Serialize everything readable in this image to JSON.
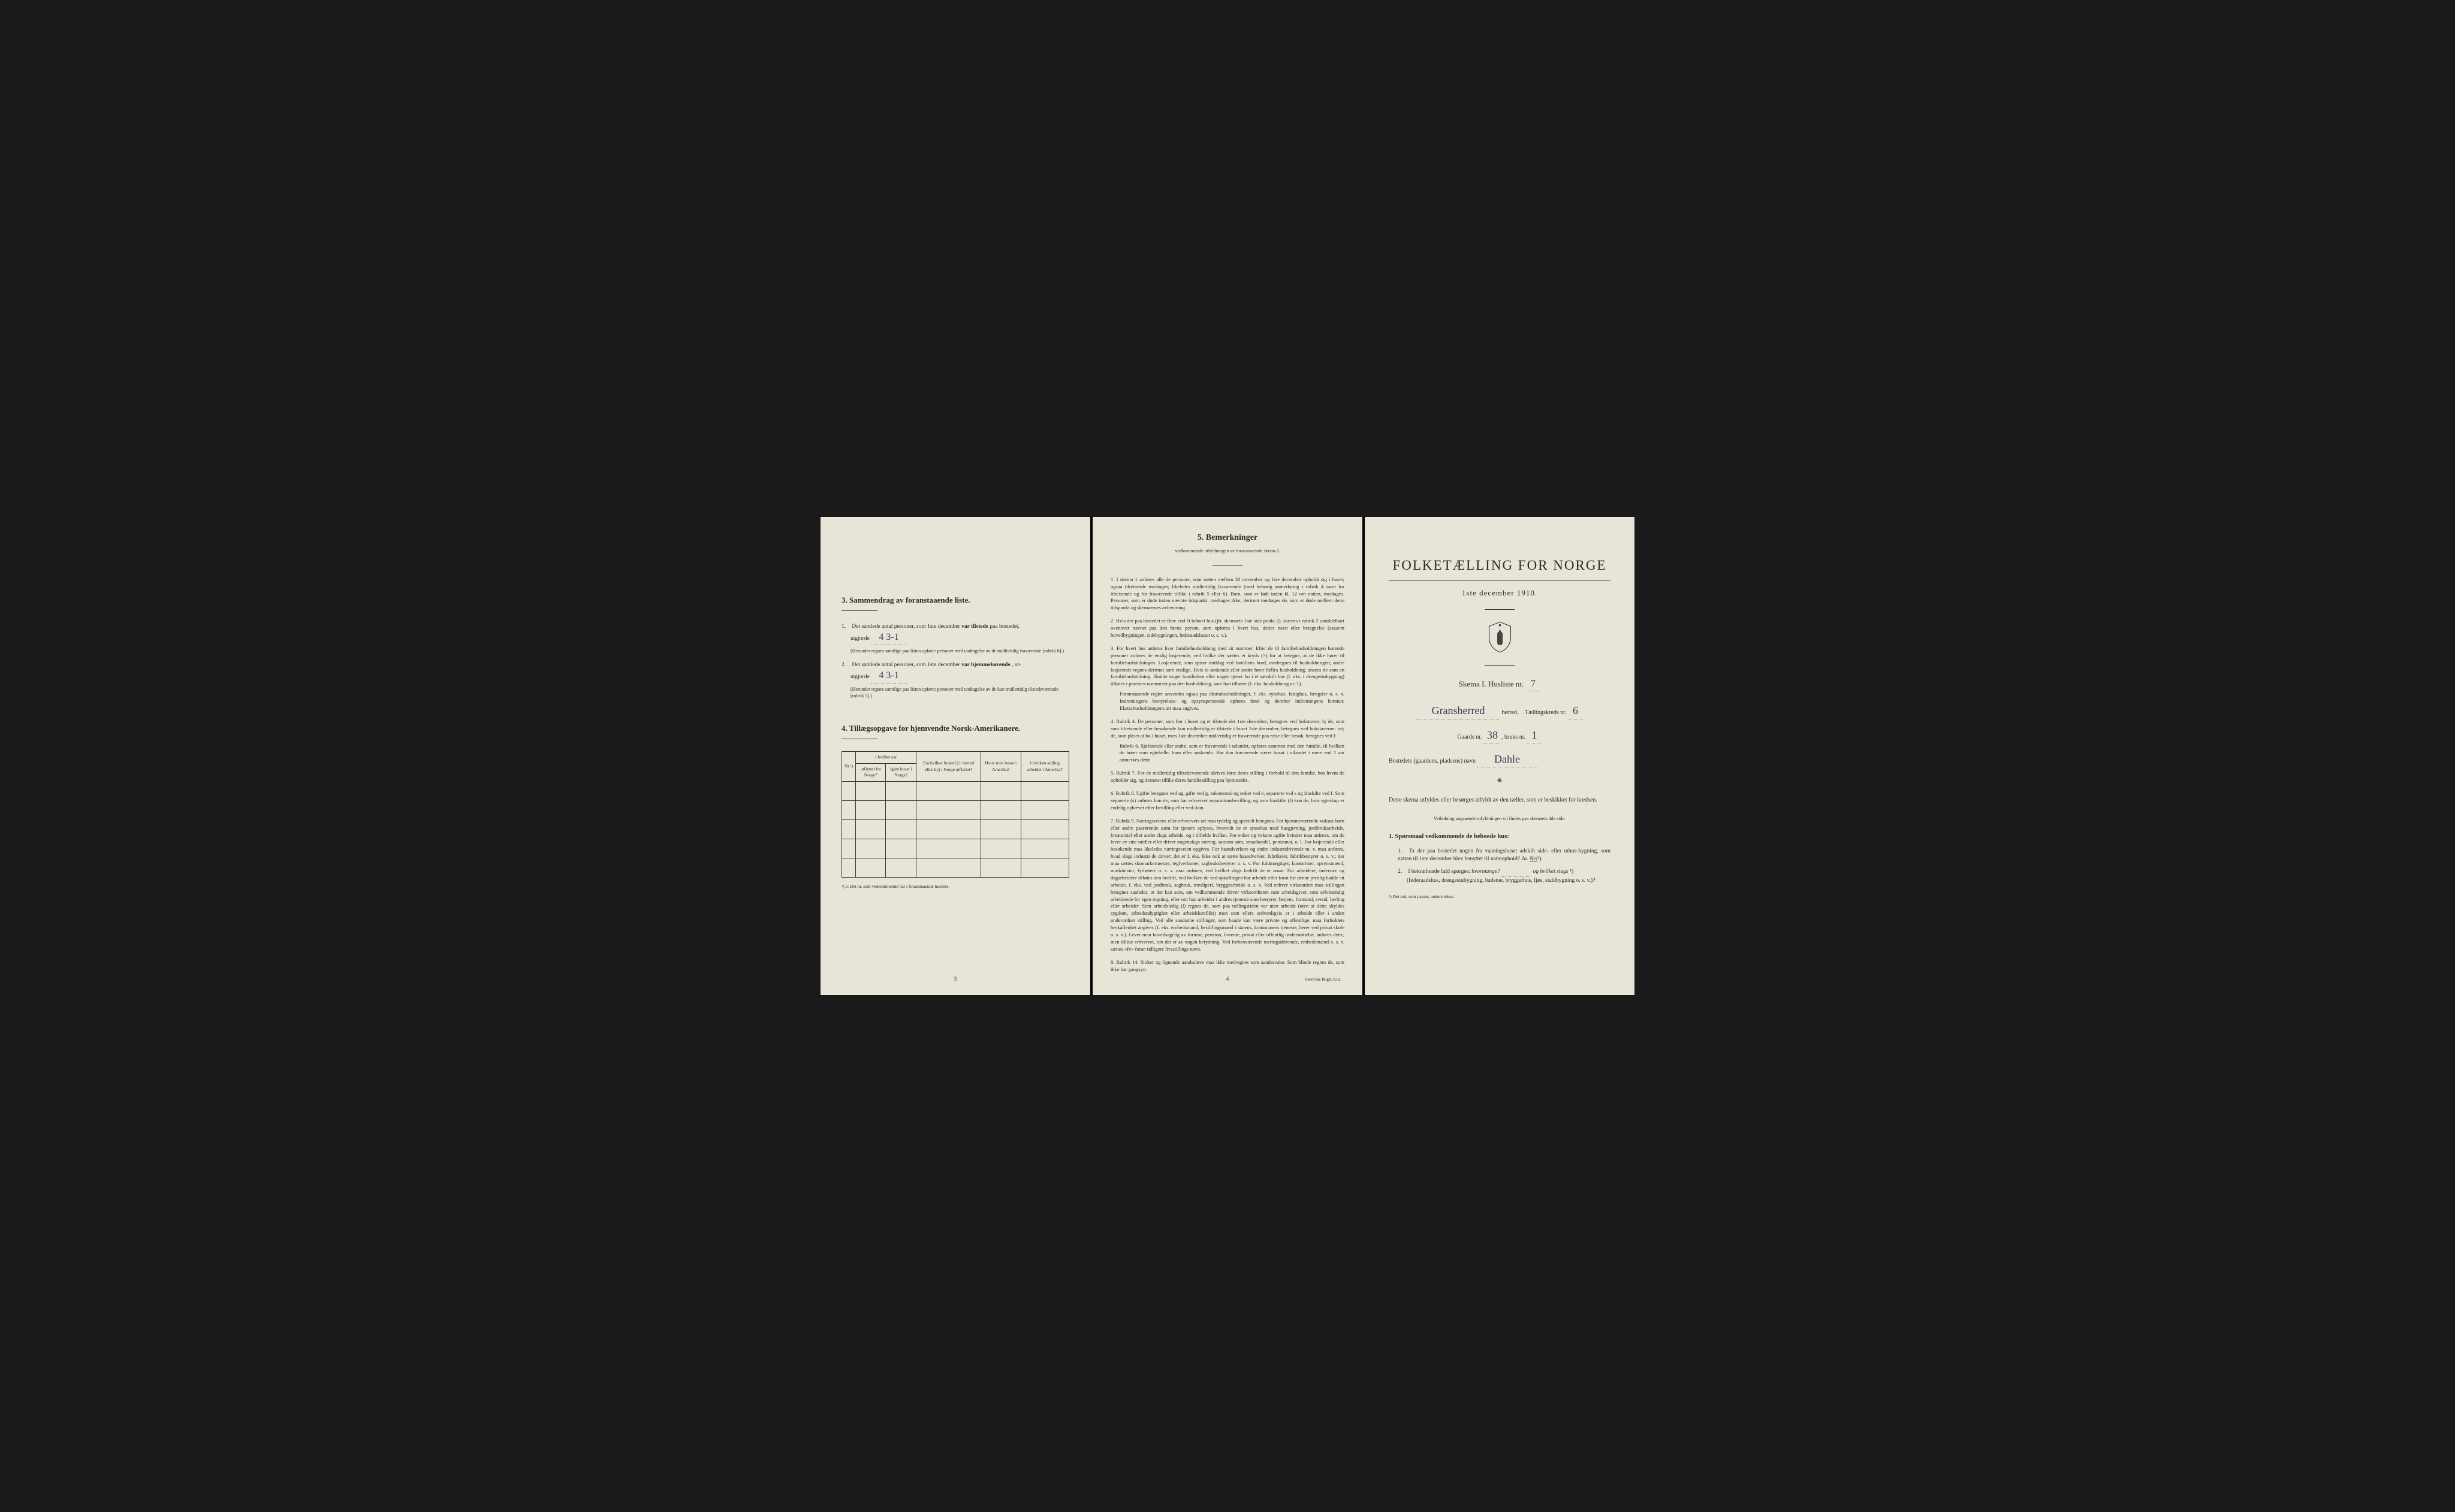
{
  "page3": {
    "section3_title": "3.   Sammendrag av foranstaaende liste.",
    "item1_text": "Det samlede antal personer, som 1ste december",
    "item1_bold": "var tilstede",
    "item1_suffix": "paa bostedet,",
    "utgjorde_label": "utgjorde",
    "item1_value": "4   3-1",
    "item1_note": "(Herunder regnes samtlige paa listen opførte personer med undtagelse av de midlertidig fraværende [rubrik 6].)",
    "item2_text": "Det samlede antal personer, som 1ste december",
    "item2_bold": "var hjemmehørende",
    "item2_suffix": ", ut-",
    "item2_value": "4   3-1",
    "item2_note": "(Herunder regnes samtlige paa listen opførte personer med undtagelse av de kun midlertidig tilstedeværende [rubrik 5].)",
    "section4_title": "4.  Tillægsopgave for hjemvendte Norsk-Amerikanere.",
    "table": {
      "col1": "Nr.¹)",
      "col2_main": "I hvilket aar",
      "col2a": "utflyttet fra Norge?",
      "col2b": "igjen bosat i Norge?",
      "col3": "Fra hvilket bosted (ɔ: herred eller by) i Norge utflyttet?",
      "col4": "Hvor sidst bosat i Amerika?",
      "col5": "I hvilken stilling arbeidet i Amerika?"
    },
    "table_footnote": "¹) ɔ: Det nr. som vedkommende har i foranstaaende husliste.",
    "page_number": "3"
  },
  "page4": {
    "title": "5.   Bemerkninger",
    "subtitle": "vedkommende utfyldningen av foranstaaende skema I.",
    "rules": [
      {
        "num": "1.",
        "text": "I skema 1 anføres alle de personer, som natten mellem 30 november og 1ste december opholdt sig i huset; ogsaa tilreisende medtages; likeledes midlertidig fraværende (med behørig anmerkning i rubrik 4 samt for tilreisende og for fraværende tillike i rubrik 5 eller 6). Barn, som er født inden kl. 12 om natten, medtages. Personer, som er døde inden nævnte tidspunkt, medtages ikke; derimot medtages de, som er døde mellem dette tidspunkt og skemaernes avhentning."
      },
      {
        "num": "2.",
        "text": "Hvis der paa bostedet er flere end ét beboet hus (jfr. skemaets 1ste side punkt 2), skrives i rubrik 2 umiddelbart ovenover navnet paa den første person, som opføres i hvert hus, dettes navn eller betegnelse (saasom hovedbygningen, sidebygningen, føderaadshuset o. s. v.)."
      },
      {
        "num": "3.",
        "text": "For hvert hus anføres hver familiehusholdning med sit nummer. Efter de til familiehusholdningen hørende personer anføres de enslig losjerende, ved hvilke der sættes et kryds (×) for at betegne, at de ikke hører til familiehusholdningen. Losjerende, som spiser middag ved familiens bord, medregnes til husholdningen; andre losjerende regnes derimot som enslige. Hvis to søskende eller andre fører fælles husholdning, ansees de som en familiehusholdning. Skulde noget familielem eller nogen tjener bo i et særskilt hus (f. eks. i drengestubygning) tilføies i parentes nummeret paa den husholdning, som han tilhører (f. eks. husholdning nr. 1).",
        "sub": "Foranstaaende regler anvendes ogsaa paa ekstrahusholdninger, f. eks. sykehus, fattighus, fængsler o. s. v. Indretningens bestyrelses- og opsynspersonale opføres først og derefter indretningens lemmer. Ekstrahusholdningens art maa angives."
      },
      {
        "num": "4.",
        "text": "Rubrik 4. De personer, som bor i huset og er tilstede der 1ste december, betegnes ved bokstaven: b; de, som som tilreisende eller besøkende kun midlertidig er tilstede i huset 1ste december, betegnes ved bokstaverne: mt; de, som pleier at bo i huset, men 1ste december midlertidig er fraværende paa reise eller besøk, betegnes ved f.",
        "sub": "Rubrik 6. Sjøfarende eller andre, som er fraværende i utlandet, opføres sammen med den familie, til hvilken de hører som egtefælle, barn eller søskende. Har den fraværende været bosat i utlandet i mere end 1 aar anmerkes dette."
      },
      {
        "num": "5.",
        "text": "Rubrik 7. For de midlertidig tilstedeværende skrives først deres stilling i forhold til den familie, hos hvem de opholder sig, og dernæst tillike deres familiestilling paa hjemstedet."
      },
      {
        "num": "6.",
        "text": "Rubrik 8. Ugifte betegnes ved ug, gifte ved g, enkemænd og enker ved e, separerte ved s og fraskilte ved f. Som separerte (s) anføres kun de, som har erhvervet separationsbevilling, og som fraskilte (f) kun de, hvis egteskap er endelig ophævet efter bevilling eller ved dom."
      },
      {
        "num": "7.",
        "text": "Rubrik 9. Næringsveiens eller erhvervets art maa tydelig og specielt betegnes. For hjemmeværende voksne barn eller andre paarørende samt for tjenere oplyses, hvorvidt de er sysselsat med husgjerning, jordbruksarbeide, kreaturstel eller andet slags arbeide, og i tilfælde hvilket. For enker og voksne ugifte kvinder maa anføres, om de lever av sine midler eller driver nogenslags næring, saasom søm, smaahandel, pensionat, o. l. For losjerende eller besøkende maa likeledes næringsveien opgives. For haandverkere og andre industridrivende m. v. maa anføres, hvad slags industri de driver; det er f. eks. ikke nok at sætte haandverker, fabrikeier, fabrikbestyrer o. s. v.; der maa sættes skomarkermester, teglverkseier, sagbruksbestyrer o. s. v. For fuldmægtiger, kontorister, opsynsmænd, maskinister, fyrbøtere o. s. v. maa anføres, ved hvilket slags bedrift de er ansat. For arbeidere, inderster og dagarbeidere tilføies den bedrift, ved hvilken de ved optællingen har arbeide eller forut for denne jevnlig hadde sit arbeide, f. eks. ved jordbruk, sagbruk, træsliperi, bryggearbeide o. s. v. Ved enhver virksomhet maa stillingen betegnes saaledes, at det kan sees, om vedkommende driver virksomheten som arbeidsgiver, som selvstændig arbeidende for egen regning, eller om han arbeider i andres tjeneste som bestyrer, betjent, formand, svend, lærling eller arbeider. Som arbeidsledig (l) regnes de, som paa tællingstiden var uten arbeide (uten at dette skyldes sygdom, arbeidsudygtighet eller arbeidskonflikt) men som ellers sedvanligvis er i arbeide eller i anden underordnet stilling. Ved alle saadanne stillinger, som baade kan være private og offentlige, maa forholdets beskaffenhet angives (f. eks. embedsmand, bestillingsmand i statens, kommunens tjeneste, lærer ved privat skole o. s. v.). Lever man hovedsagelig av formue, pension, livrente, privat eller offentlig understøttelse, anføres dette, men tillike erhvervet, om det er av nogen betydning. Ved forhenværende næringsdrivende, embedsmænd o. s. v. sættes «fv» foran tidligere livsstillings navn."
      },
      {
        "num": "8.",
        "text": "Rubrik 14. Sinker og lignende aandssløve maa ikke medregnes som aandssvake. Som blinde regnes de, som ikke har gangsyn."
      }
    ],
    "page_number": "4",
    "printer": "Steen'ske Bogtr. Kr.a."
  },
  "page5": {
    "main_title": "FOLKETÆLLING FOR NORGE",
    "date": "1ste december 1910.",
    "skema_label": "Skema I.   Husliste nr.",
    "husliste_nr": "7",
    "herred_value": "Gransherred",
    "herred_label": "herred.",
    "tkreds_label": "Tællingskreds nr.",
    "tkreds_value": "6",
    "gaards_label": "Gaards nr.",
    "gaards_value": "38",
    "bruks_label": "bruks nr.",
    "bruks_value": "1",
    "bosted_label": "Bostedets (gaardens, pladsens) navn",
    "bosted_value": "Dahle",
    "instructions": "Dette skema utfyldes eller besørges utfyldt av den tæller, som er beskikket for kredsen.",
    "inst_sub": "Veiledning angaaende utfyldningen vil findes paa skemaets 4de side.",
    "q_head": "1. Spørsmaal vedkommende de beboede hus:",
    "q1": "Er der paa bostedet nogen fra vaaningshuset adskilt side- eller uthus-bygning, som natten til 1ste december blev benyttet til natteophold?",
    "q1_ja": "Ja.",
    "q1_nei": "Nei",
    "q1_sup": "¹).",
    "q2": "I bekræftende fald spørges:",
    "q2_hvor": "hvormange?",
    "q2_og": "og hvilket slags",
    "q2_sup": "¹)",
    "q2_sub": "(føderaadshus, drengestubygning, badstue, bryggerhus, fjøs, staldbygning o. s. v.)?",
    "footnote": "¹) Det ord, som passer, understrekes."
  }
}
